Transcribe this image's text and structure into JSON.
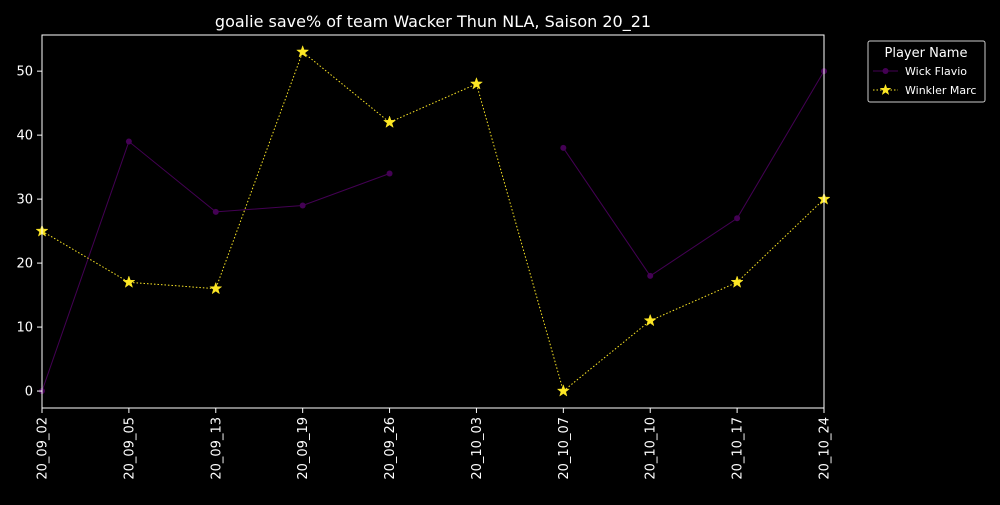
{
  "chart_data": {
    "type": "line",
    "title": "goalie save% of team Wacker Thun NLA, Saison 20_21",
    "xlabel": "",
    "ylabel": "",
    "categories": [
      "20_09_02",
      "20_09_05",
      "20_09_13",
      "20_09_19",
      "20_09_26",
      "20_10_03",
      "20_10_07",
      "20_10_10",
      "20_10_17",
      "20_10_24"
    ],
    "ylim": [
      -2.65,
      55.65
    ],
    "yticks": [
      0,
      10,
      20,
      30,
      40,
      50
    ],
    "grid": true,
    "legend": {
      "title": "Player Name",
      "placement": "outside-top-right"
    },
    "series": [
      {
        "name": "Wick Flavio",
        "color": "#440154",
        "marker": "circle",
        "linestyle": "solid",
        "values": [
          0,
          39,
          28,
          29,
          34,
          null,
          38,
          18,
          27,
          50
        ]
      },
      {
        "name": "Winkler Marc",
        "color": "#fde725",
        "marker": "star",
        "linestyle": "dotted",
        "values": [
          25,
          17,
          16,
          53,
          42,
          48,
          0,
          11,
          17,
          30
        ]
      }
    ]
  },
  "colors": {
    "background": "#000000",
    "text": "#ffffff",
    "grid": "#808080",
    "axes": "#ffffff"
  }
}
